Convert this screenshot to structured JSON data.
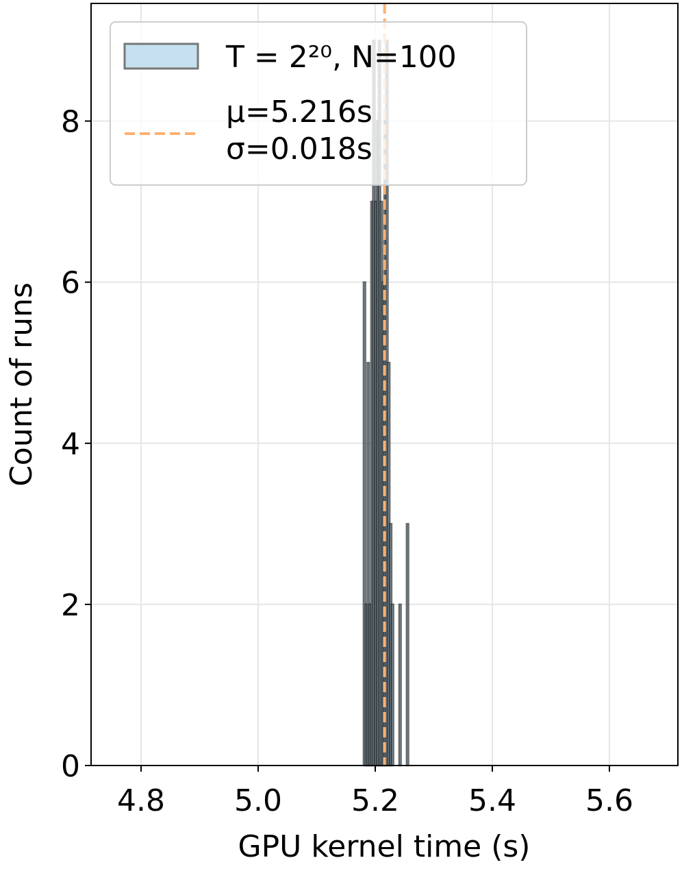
{
  "chart_data": {
    "type": "histogram",
    "xlabel": "GPU kernel time (s)",
    "ylabel": "Count of runs",
    "bins": [
      5.18,
      5.1832,
      5.1864,
      5.1896,
      5.1928,
      5.196,
      5.1992,
      5.2024,
      5.2056,
      5.2088,
      5.212,
      5.2152,
      5.2184,
      5.2216,
      5.2248,
      5.228,
      5.2312,
      5.2344,
      5.2376,
      5.2408,
      5.244,
      5.2472,
      5.2504,
      5.2536,
      5.2568,
      5.26
    ],
    "series": [
      {
        "name": "T = 2²⁰, N=100",
        "color": "#c6e0f0",
        "edgecolor": "#000000",
        "values": [
          6,
          2,
          5,
          2,
          7,
          9,
          7,
          8,
          9,
          7,
          6,
          8,
          9,
          5,
          3,
          2,
          0,
          0,
          0,
          2,
          0,
          0,
          0,
          3,
          0
        ]
      }
    ],
    "mean_line": {
      "value": 5.216,
      "color": "#ffb070",
      "label": [
        "μ=5.216s",
        "σ=0.018s"
      ]
    },
    "xlim": [
      4.7146,
      5.717
    ],
    "xticks": [
      {
        "value": 4.8,
        "label": "4.8"
      },
      {
        "value": 5.0,
        "label": "5.0"
      },
      {
        "value": 5.2,
        "label": "5.2"
      },
      {
        "value": 5.4,
        "label": "5.4"
      },
      {
        "value": 5.6,
        "label": "5.6"
      }
    ],
    "ylim": [
      0,
      9.46
    ],
    "yticks": [
      0,
      2,
      4,
      6,
      8
    ],
    "grid": true,
    "legend": "upper left"
  }
}
